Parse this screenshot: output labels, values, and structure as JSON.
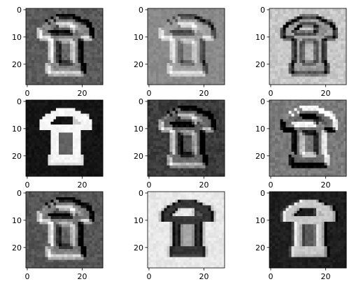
{
  "chart_data": {
    "type": "heatmap",
    "colormap": "gray",
    "grid": "off",
    "title": "",
    "xlabel": "",
    "ylabel": "",
    "layout": "3x3 grid of image subplots",
    "image_size": [
      28,
      28
    ],
    "xlim": [
      -0.5,
      27.5
    ],
    "ylim": [
      27.5,
      -0.5
    ],
    "x_ticks": [
      0,
      20
    ],
    "y_ticks": [
      0,
      10,
      20
    ],
    "panels": [
      {
        "row": 1,
        "col": 1,
        "background": "#5a5a5a",
        "style": "emboss"
      },
      {
        "row": 1,
        "col": 2,
        "background": "#8a8a8a",
        "style": "emboss-soft"
      },
      {
        "row": 1,
        "col": 3,
        "background": "#c8c8c8",
        "style": "edge-dark"
      },
      {
        "row": 2,
        "col": 1,
        "background": "#141414",
        "style": "bright-glyph"
      },
      {
        "row": 2,
        "col": 2,
        "background": "#3c3c3c",
        "style": "emboss"
      },
      {
        "row": 2,
        "col": 3,
        "background": "#7a7a7a",
        "style": "edge-mixed"
      },
      {
        "row": 3,
        "col": 1,
        "background": "#555555",
        "style": "emboss"
      },
      {
        "row": 3,
        "col": 2,
        "background": "#e8e8e8",
        "style": "dark-glyph"
      },
      {
        "row": 3,
        "col": 3,
        "background": "#1e1e1e",
        "style": "bright-glyph-soft"
      }
    ]
  }
}
